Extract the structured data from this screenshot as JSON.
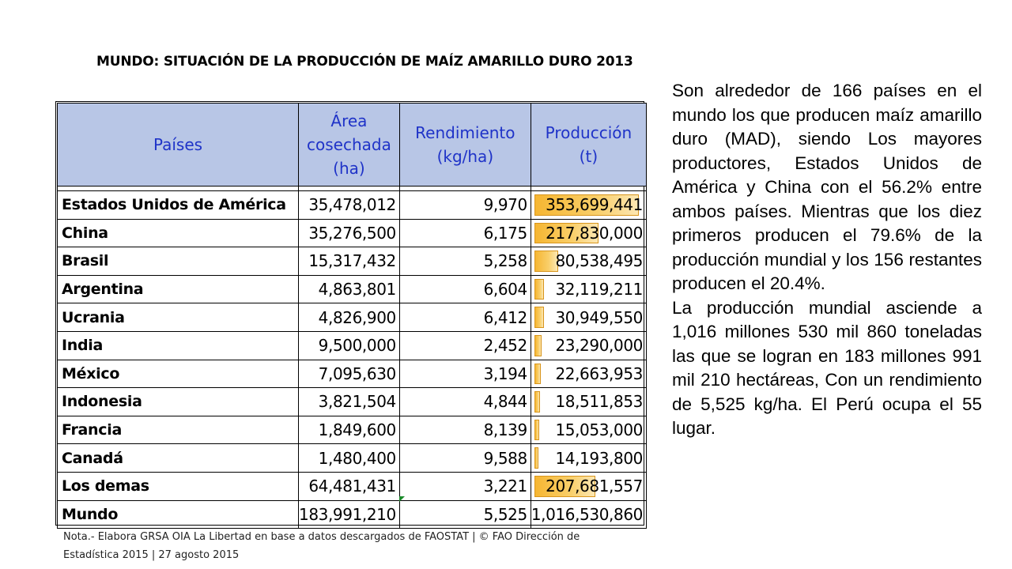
{
  "title": "MUNDO: SITUACIÓN DE LA PRODUCCIÓN DE MAÍZ AMARILLO DURO  2013",
  "table": {
    "headers": [
      [
        "Países"
      ],
      [
        "Área",
        "cosechada",
        "(ha)"
      ],
      [
        "Rendimiento",
        "(kg/ha)"
      ],
      [
        "Producción",
        "(t)"
      ]
    ],
    "rows": [
      {
        "country": "Estados Unidos de América",
        "area": "35,478,012",
        "yield": "9,970",
        "production": "353,699,441",
        "bar_fraction": 1.0
      },
      {
        "country": "China",
        "area": "35,276,500",
        "yield": "6,175",
        "production": "217,830,000",
        "bar_fraction": 0.616
      },
      {
        "country": "Brasil",
        "area": "15,317,432",
        "yield": "5,258",
        "production": "80,538,495",
        "bar_fraction": 0.228
      },
      {
        "country": "Argentina",
        "area": "4,863,801",
        "yield": "6,604",
        "production": "32,119,211",
        "bar_fraction": 0.091
      },
      {
        "country": "Ucrania",
        "area": "4,826,900",
        "yield": "6,412",
        "production": "30,949,550",
        "bar_fraction": 0.0875
      },
      {
        "country": "India",
        "area": "9,500,000",
        "yield": "2,452",
        "production": "23,290,000",
        "bar_fraction": 0.0658
      },
      {
        "country": "México",
        "area": "7,095,630",
        "yield": "3,194",
        "production": "22,663,953",
        "bar_fraction": 0.0641
      },
      {
        "country": "Indonesia",
        "area": "3,821,504",
        "yield": "4,844",
        "production": "18,511,853",
        "bar_fraction": 0.0523
      },
      {
        "country": "Francia",
        "area": "1,849,600",
        "yield": "8,139",
        "production": "15,053,000",
        "bar_fraction": 0.0426
      },
      {
        "country": "Canadá",
        "area": "1,480,400",
        "yield": "9,588",
        "production": "14,193,800",
        "bar_fraction": 0.0401
      },
      {
        "country": "Los demas",
        "area": "64,481,431",
        "yield": "3,221",
        "production": "207,681,557",
        "bar_fraction": 0.587
      }
    ],
    "total": {
      "country": "Mundo",
      "area": "183,991,210",
      "yield": "5,525",
      "production": "1,016,530,860"
    }
  },
  "note": "Nota.- Elabora GRSA OIA La Libertad en base a datos descargados de FAOSTAT | © FAO Dirección de Estadística 2015 | 27 agosto 2015",
  "side_text": {
    "paragraph1": "Son alrededor de 166 países en el mundo los que producen maíz amarillo duro (MAD), siendo Los mayores productores, Estados Unidos de América y China con el 56.2% entre ambos países. Mientras que los diez primeros producen el 79.6% de la producción mundial y los 156 restantes producen el 20.4%.",
    "paragraph2": "La producción mundial asciende a 1,016 millones 530 mil 860 toneladas las que se logran en 183 millones 991 mil 210 hectáreas, Con un rendimiento de 5,525 kg/ha. El Perú ocupa el 55 lugar."
  },
  "colors": {
    "header_fill": "#b8c6e6",
    "header_text": "#1f33c8",
    "bar_fill": "#f6b632"
  }
}
